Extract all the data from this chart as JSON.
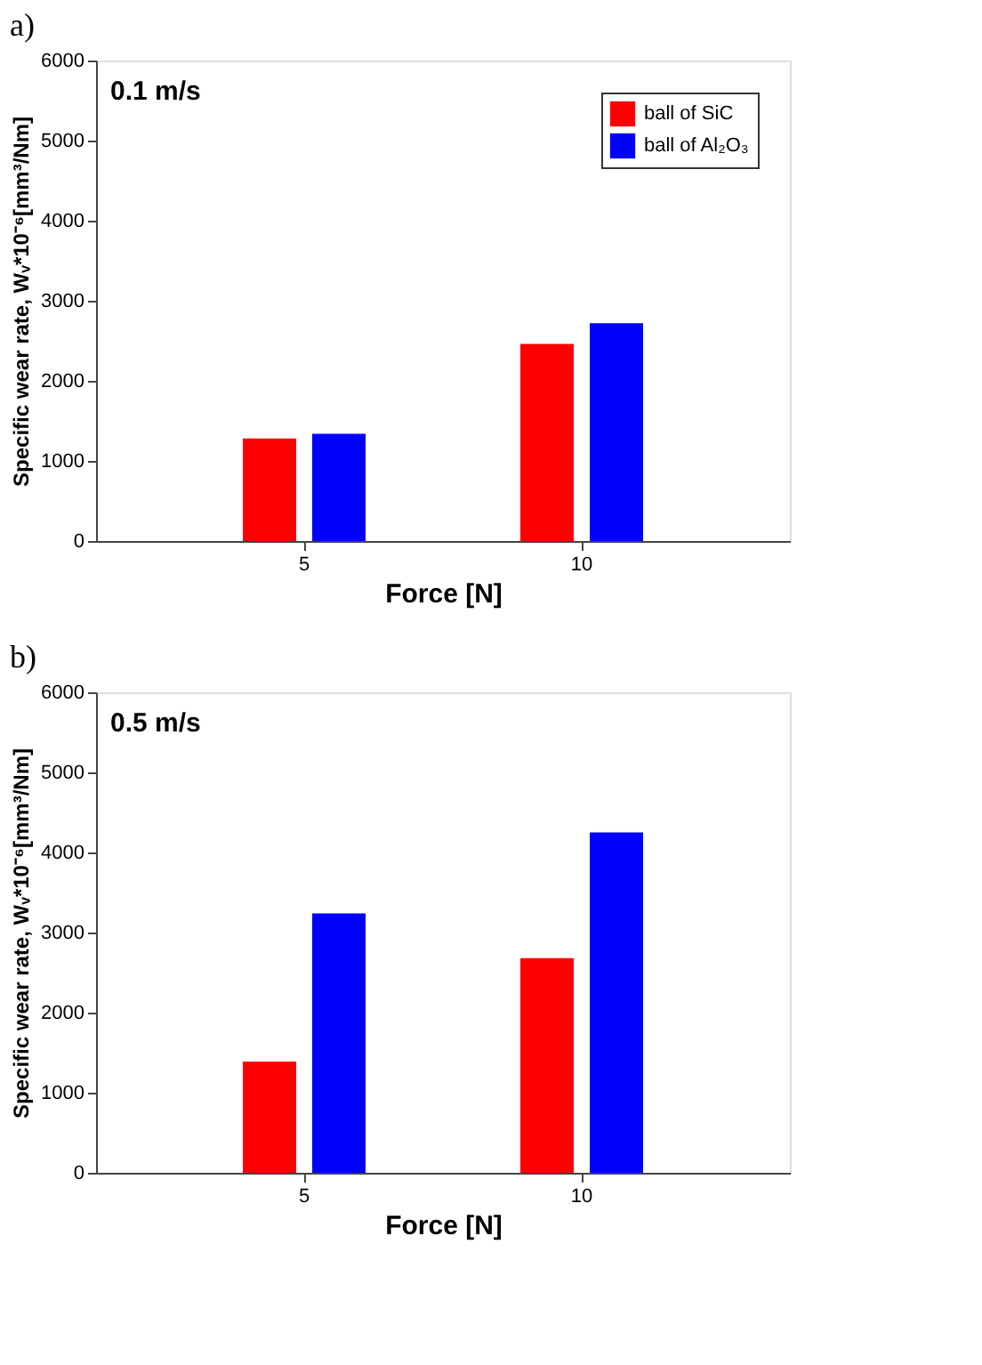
{
  "chart_data": [
    {
      "type": "bar",
      "title": "a)",
      "xlabel": "Force [N]",
      "ylabel": "Specific wear rate, Wᵥ*10⁻⁶[mm³/Nm]",
      "categories": [
        "5",
        "10"
      ],
      "series": [
        {
          "name": "ball of SiC",
          "color": "#ff0000",
          "values": [
            1280,
            2460
          ]
        },
        {
          "name": "ball of Al₂O₃",
          "color": "#0000ff",
          "values": [
            1340,
            2720
          ]
        }
      ],
      "ylim": [
        0,
        6000
      ],
      "yticks": [
        0,
        1000,
        2000,
        3000,
        4000,
        5000,
        6000
      ],
      "grid": false,
      "legend": "top right",
      "annotations": [
        "0.1 m/s"
      ]
    },
    {
      "type": "bar",
      "title": "b)",
      "xlabel": "Force [N]",
      "ylabel": "Specific wear rate, Wᵥ*10⁻⁶[mm³/Nm]",
      "categories": [
        "5",
        "10"
      ],
      "series": [
        {
          "name": "ball of SiC",
          "color": "#ff0000",
          "values": [
            1390,
            2680
          ]
        },
        {
          "name": "ball of Al₂O₃",
          "color": "#0000ff",
          "values": [
            3240,
            4250
          ]
        }
      ],
      "ylim": [
        0,
        6000
      ],
      "yticks": [
        0,
        1000,
        2000,
        3000,
        4000,
        5000,
        6000
      ],
      "grid": false,
      "legend": "top right",
      "annotations": [
        "0.5 m/s"
      ]
    }
  ]
}
